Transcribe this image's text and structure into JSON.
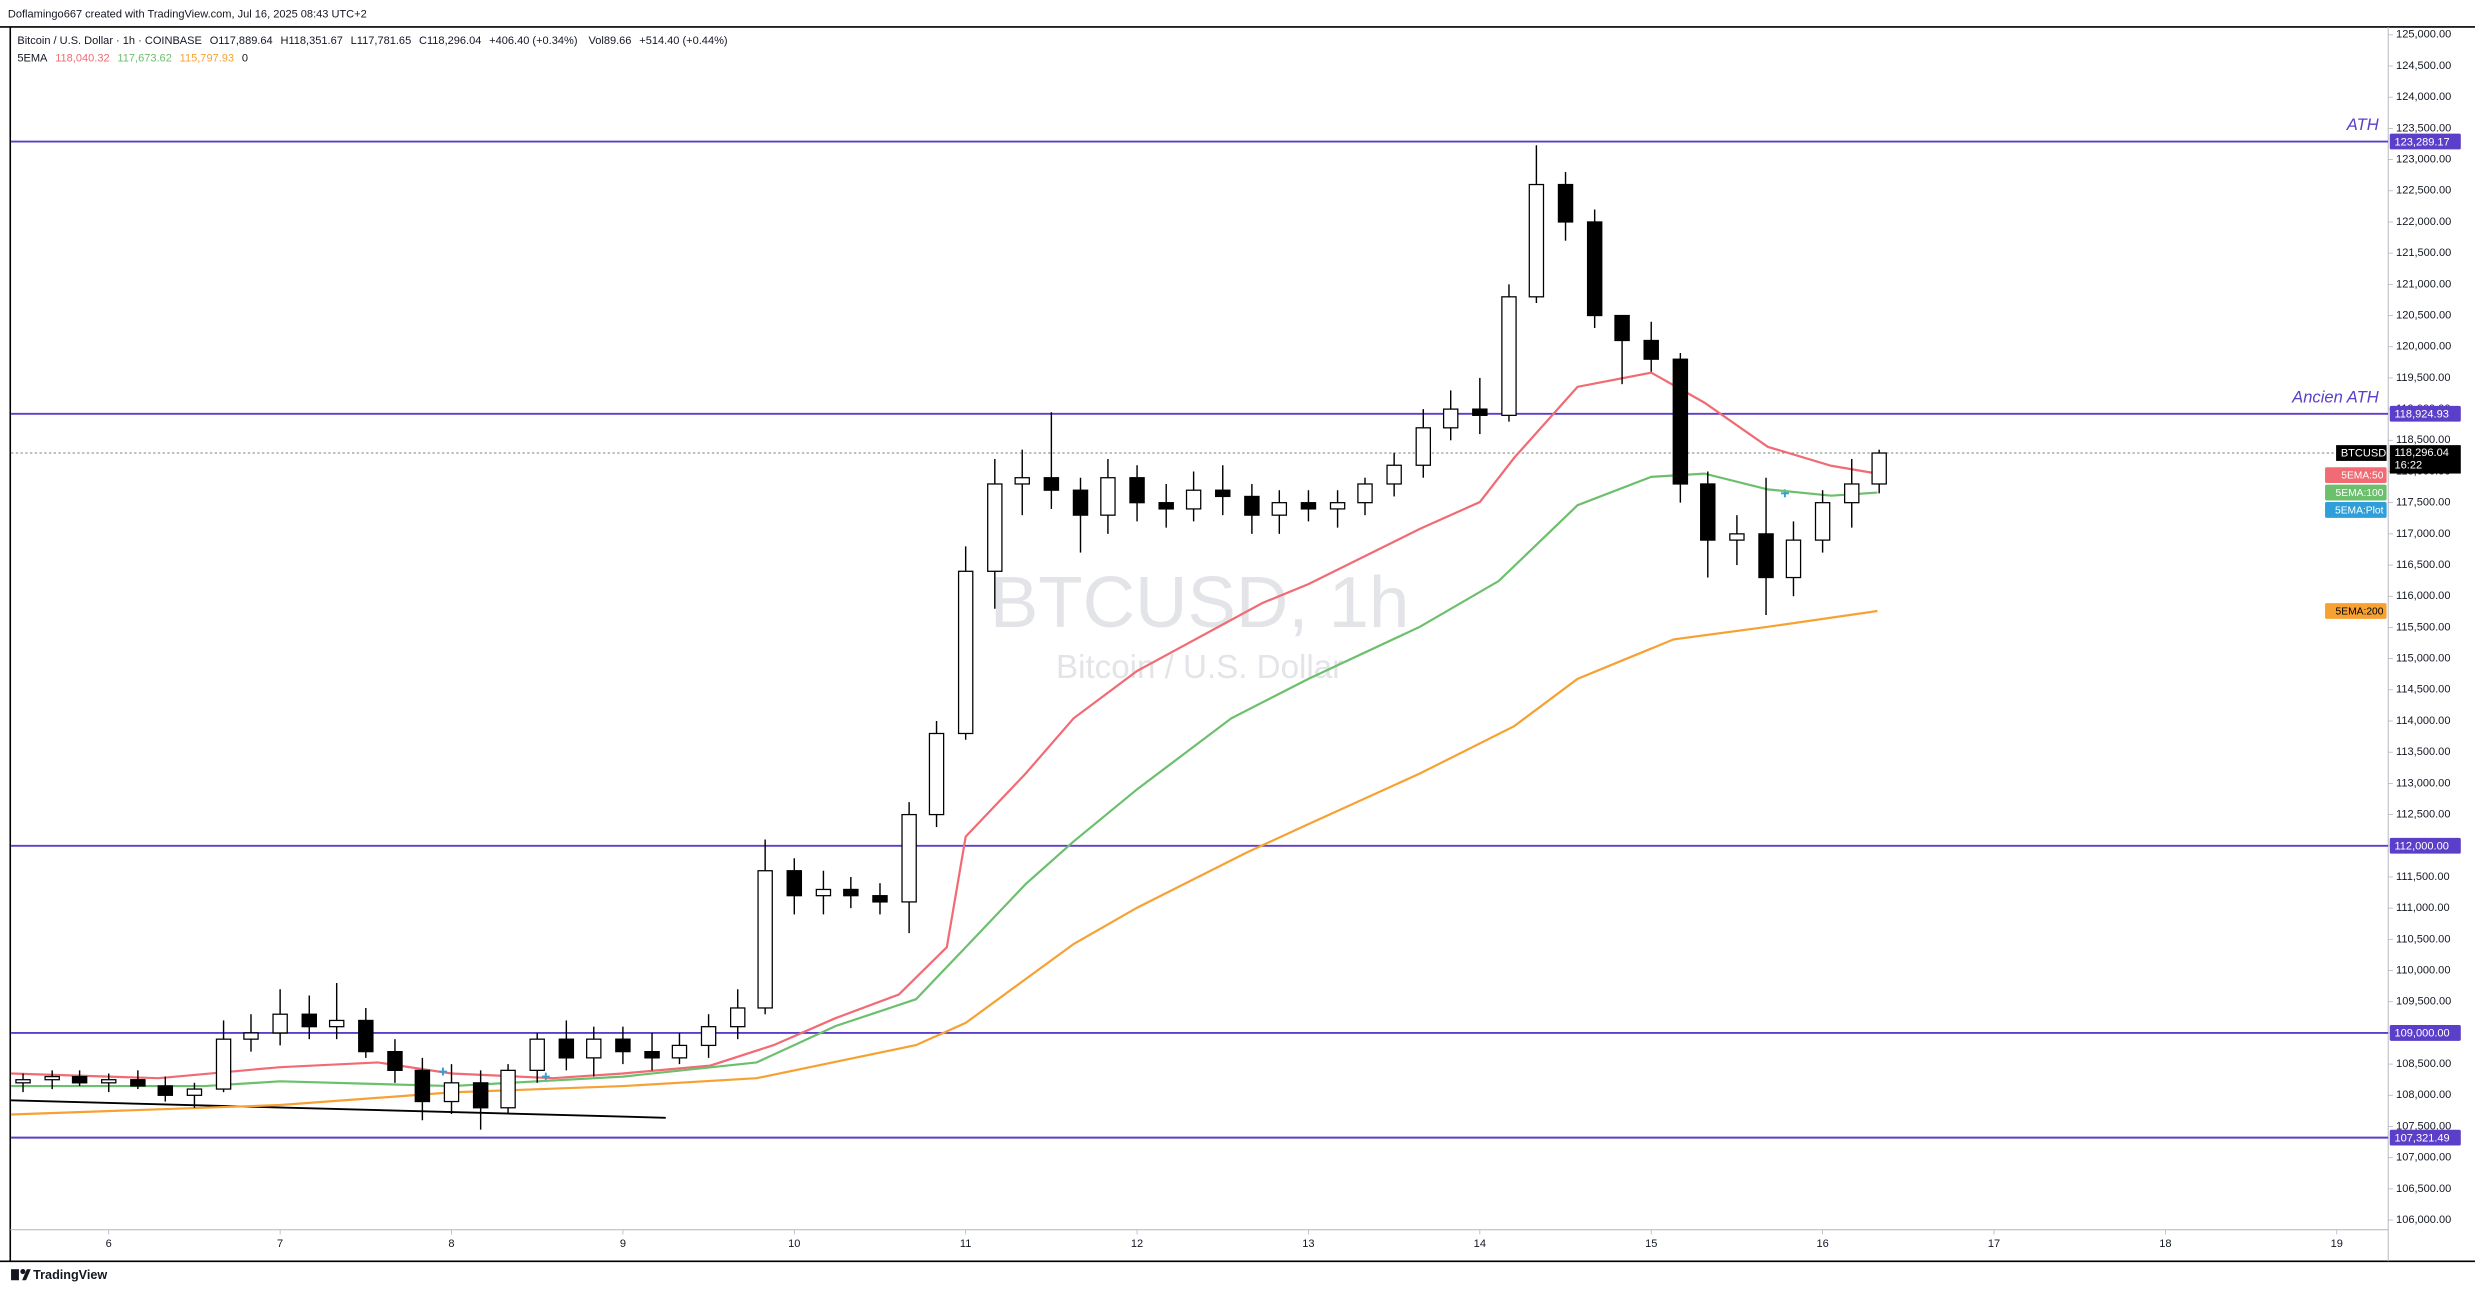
{
  "header": {
    "attribution": "Doflamingo667 created with TradingView.com, Jul 16, 2025 08:43 UTC+2",
    "symbol": "Bitcoin / U.S. Dollar · 1h · COINBASE",
    "open": "O117,889.64",
    "high": "H118,351.67",
    "low": "L117,781.65",
    "close": "C118,296.04",
    "change": "+406.40 (+0.34%)",
    "volume": "Vol89.66",
    "volume_change": "+514.40 (+0.44%)",
    "indicator": "5EMA",
    "ema50": "118,040.32",
    "ema100": "117,673.62",
    "ema200": "115,797.93",
    "ema_extra": "0"
  },
  "watermark": {
    "title": "BTCUSD, 1h",
    "subtitle": "Bitcoin / U.S. Dollar"
  },
  "footer": {
    "brand": "TradingView"
  },
  "chart_data": {
    "type": "candlestick",
    "up_color": "#ffffff",
    "down_color": "#000000",
    "grid": false,
    "xlim": [
      5.43,
      19.3
    ],
    "xticks": [
      6,
      7,
      8,
      9,
      10,
      11,
      12,
      13,
      14,
      15,
      16,
      17,
      18,
      19
    ],
    "ylim": [
      105845,
      125126
    ],
    "yticks": [
      {
        "value": 106000,
        "label": "106,000.00"
      },
      {
        "value": 106500,
        "label": "106,500.00"
      },
      {
        "value": 107000,
        "label": "107,000.00"
      },
      {
        "value": 107500,
        "label": "107,500.00"
      },
      {
        "value": 108000,
        "label": "108,000.00"
      },
      {
        "value": 108500,
        "label": "108,500.00"
      },
      {
        "value": 109000,
        "label": "109,000.00"
      },
      {
        "value": 109500,
        "label": "109,500.00"
      },
      {
        "value": 110000,
        "label": "110,000.00"
      },
      {
        "value": 110500,
        "label": "110,500.00"
      },
      {
        "value": 111000,
        "label": "111,000.00"
      },
      {
        "value": 111500,
        "label": "111,500.00"
      },
      {
        "value": 112000,
        "label": "112,000.00"
      },
      {
        "value": 112500,
        "label": "112,500.00"
      },
      {
        "value": 113000,
        "label": "113,000.00"
      },
      {
        "value": 113500,
        "label": "113,500.00"
      },
      {
        "value": 114000,
        "label": "114,000.00"
      },
      {
        "value": 114500,
        "label": "114,500.00"
      },
      {
        "value": 115000,
        "label": "115,000.00"
      },
      {
        "value": 115500,
        "label": "115,500.00"
      },
      {
        "value": 116000,
        "label": "116,000.00"
      },
      {
        "value": 116500,
        "label": "116,500.00"
      },
      {
        "value": 117000,
        "label": "117,000.00"
      },
      {
        "value": 117500,
        "label": "117,500.00"
      },
      {
        "value": 118000,
        "label": "118,000.00"
      },
      {
        "value": 118500,
        "label": "118,500.00"
      },
      {
        "value": 119000,
        "label": "119,000.00"
      },
      {
        "value": 119500,
        "label": "119,500.00"
      },
      {
        "value": 120000,
        "label": "120,000.00"
      },
      {
        "value": 120500,
        "label": "120,500.00"
      },
      {
        "value": 121000,
        "label": "121,000.00"
      },
      {
        "value": 121500,
        "label": "121,500.00"
      },
      {
        "value": 122000,
        "label": "122,000.00"
      },
      {
        "value": 122500,
        "label": "122,500.00"
      },
      {
        "value": 123000,
        "label": "123,000.00"
      },
      {
        "value": 123500,
        "label": "123,500.00"
      },
      {
        "value": 124000,
        "label": "124,000.00"
      },
      {
        "value": 124500,
        "label": "124,500.00"
      },
      {
        "value": 125000,
        "label": "125,000.00"
      }
    ],
    "x": [
      5.5,
      5.67,
      5.83,
      6.0,
      6.17,
      6.33,
      6.5,
      6.67,
      6.83,
      7.0,
      7.17,
      7.33,
      7.5,
      7.67,
      7.83,
      8.0,
      8.17,
      8.33,
      8.5,
      8.67,
      8.83,
      9.0,
      9.17,
      9.33,
      9.5,
      9.67,
      9.83,
      10.0,
      10.17,
      10.33,
      10.5,
      10.67,
      10.83,
      11.0,
      11.17,
      11.33,
      11.5,
      11.67,
      11.83,
      12.0,
      12.17,
      12.33,
      12.5,
      12.67,
      12.83,
      13.0,
      13.17,
      13.33,
      13.5,
      13.67,
      13.83,
      14.0,
      14.17,
      14.33,
      14.5,
      14.67,
      14.83,
      15.0,
      15.17,
      15.33,
      15.5,
      15.67,
      15.83,
      16.0,
      16.17,
      16.33
    ],
    "open": [
      108200,
      108250,
      108300,
      108200,
      108250,
      108150,
      108000,
      108100,
      108900,
      109000,
      109300,
      109100,
      109200,
      108700,
      108400,
      107900,
      108200,
      107800,
      108400,
      108900,
      108600,
      108900,
      108700,
      108600,
      108800,
      109100,
      109400,
      111600,
      111200,
      111300,
      111200,
      111100,
      112500,
      113800,
      116400,
      117800,
      117900,
      117700,
      117300,
      117900,
      117500,
      117400,
      117700,
      117600,
      117300,
      117500,
      117400,
      117500,
      117800,
      118100,
      118700,
      119000,
      118900,
      120800,
      122600,
      122000,
      120500,
      120100,
      119800,
      117800,
      116900,
      117000,
      116300,
      116900,
      117500,
      117800
    ],
    "high": [
      108350,
      108400,
      108400,
      108350,
      108400,
      108300,
      108200,
      109200,
      109300,
      109700,
      109600,
      109800,
      109400,
      108900,
      108600,
      108500,
      108400,
      108500,
      109000,
      109200,
      109100,
      109100,
      109000,
      109000,
      109300,
      109700,
      112100,
      111800,
      111600,
      111500,
      111400,
      112700,
      114000,
      116800,
      118200,
      118350,
      118950,
      117900,
      118200,
      118100,
      117800,
      118000,
      118100,
      117800,
      117700,
      117700,
      117700,
      117900,
      118300,
      119000,
      119300,
      119500,
      121000,
      123230,
      122800,
      122200,
      120500,
      120400,
      119900,
      118000,
      117300,
      117900,
      117200,
      117700,
      118200,
      118350
    ],
    "low": [
      108050,
      108100,
      108150,
      108050,
      108100,
      107900,
      107800,
      108050,
      108700,
      108800,
      108900,
      108900,
      108600,
      108200,
      107600,
      107700,
      107450,
      107700,
      108200,
      108400,
      108300,
      108500,
      108400,
      108500,
      108600,
      108900,
      109300,
      110900,
      110900,
      111000,
      110900,
      110600,
      112300,
      113700,
      115800,
      117300,
      117400,
      116700,
      117000,
      117200,
      117100,
      117200,
      117300,
      117000,
      117000,
      117200,
      117100,
      117300,
      117600,
      117900,
      118500,
      118600,
      118800,
      120700,
      121700,
      120300,
      119400,
      119600,
      117500,
      116300,
      116500,
      115700,
      116000,
      116700,
      117100,
      117650
    ],
    "close": [
      108250,
      108300,
      108200,
      108250,
      108150,
      108000,
      108100,
      108900,
      109000,
      109300,
      109100,
      109200,
      108700,
      108400,
      107900,
      108200,
      107800,
      108400,
      108900,
      108600,
      108900,
      108700,
      108600,
      108800,
      109100,
      109400,
      111600,
      111200,
      111300,
      111200,
      111100,
      112500,
      113800,
      116400,
      117800,
      117900,
      117700,
      117300,
      117900,
      117500,
      117400,
      117700,
      117600,
      117300,
      117500,
      117400,
      117500,
      117800,
      118100,
      118700,
      119000,
      118900,
      120800,
      122600,
      122000,
      120500,
      120100,
      119800,
      117800,
      116900,
      117000,
      116300,
      116900,
      117500,
      117800,
      118296.04
    ],
    "series": [
      {
        "name": "5EMA:50",
        "color": "#f06b74",
        "x": [
          5.43,
          6.29,
          7.0,
          7.57,
          8.0,
          8.59,
          9.0,
          9.51,
          9.88,
          10.24,
          10.61,
          10.89,
          11.0,
          11.35,
          11.63,
          12.0,
          12.73,
          13.0,
          13.65,
          14.0,
          14.2,
          14.57,
          15.0,
          15.31,
          15.68,
          16.05,
          16.32
        ],
        "values": [
          108350,
          108274,
          108451,
          108527,
          108350,
          108274,
          108350,
          108476,
          108805,
          109236,
          109615,
          110374,
          112146,
          113158,
          114044,
          114802,
          115890,
          116194,
          117080,
          117510,
          118218,
          119357,
          119585,
          119104,
          118395,
          118092,
          117966
        ]
      },
      {
        "name": "5EMA:Plot",
        "color": "#2e9fd8",
        "style": "markers",
        "x": [
          6.67,
          7.95,
          8.55,
          15.78
        ],
        "values": [
          108300,
          108380,
          108300,
          117650
        ]
      },
      {
        "name": "5EMA:100",
        "color": "#6cbf6c",
        "x": [
          5.43,
          6.56,
          7.0,
          8.0,
          9.0,
          9.78,
          10.24,
          10.71,
          11.0,
          11.35,
          11.63,
          12.0,
          12.55,
          13.0,
          13.65,
          14.11,
          14.57,
          15.0,
          15.31,
          15.68,
          16.05,
          16.32
        ],
        "values": [
          108148,
          108148,
          108224,
          108148,
          108300,
          108527,
          109109,
          109540,
          110374,
          111386,
          112070,
          112905,
          114044,
          114676,
          115510,
          116244,
          117459,
          117914,
          117966,
          117713,
          117612,
          117662
        ]
      },
      {
        "name": "5EMA:200",
        "color": "#f7a133",
        "x": [
          5.43,
          7.0,
          8.0,
          9.0,
          9.78,
          10.71,
          11.0,
          11.63,
          12.0,
          12.64,
          13.0,
          13.65,
          14.2,
          14.57,
          15.13,
          15.68,
          16.32
        ],
        "values": [
          107692,
          107844,
          108047,
          108148,
          108274,
          108805,
          109160,
          110425,
          111007,
          111892,
          112348,
          113158,
          113917,
          114676,
          115308,
          115510,
          115764
        ]
      }
    ],
    "levels": [
      {
        "value": 123289.17,
        "label": "123,289.17",
        "annotation": "ATH"
      },
      {
        "value": 118924.93,
        "label": "118,924.93",
        "annotation": "Ancien ATH"
      },
      {
        "value": 112000,
        "label": "112,000.00"
      },
      {
        "value": 109000,
        "label": "109,000.00"
      },
      {
        "value": 107321.49,
        "label": "107,321.49"
      }
    ],
    "level_color": "#5b3fc9",
    "trendline": {
      "x": [
        5.43,
        9.25
      ],
      "y": [
        107920,
        107640
      ],
      "color": "#000000"
    },
    "last_price": {
      "symbol": "BTCUSD",
      "value": 118296.04,
      "label": "118,296.04",
      "countdown": "16:22"
    }
  }
}
